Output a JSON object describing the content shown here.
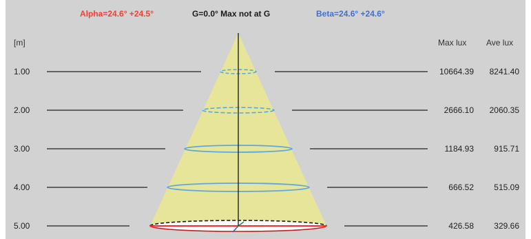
{
  "header": {
    "alpha": "Alpha=24.6° +24.5°",
    "g": "G=0.0°  Max not  at G",
    "beta": "Beta=24.6° +24.6°"
  },
  "columns": {
    "unit": "[m]",
    "max_lux": "Max lux",
    "ave_lux": "Ave lux"
  },
  "rows": [
    {
      "distance": "1.00",
      "max_lux": "10664.39",
      "ave_lux": "8241.40"
    },
    {
      "distance": "2.00",
      "max_lux": "2666.10",
      "ave_lux": "2060.35"
    },
    {
      "distance": "3.00",
      "max_lux": "1184.93",
      "ave_lux": "915.71"
    },
    {
      "distance": "4.00",
      "max_lux": "666.52",
      "ave_lux": "515.09"
    },
    {
      "distance": "5.00",
      "max_lux": "426.58",
      "ave_lux": "329.66"
    }
  ],
  "colors": {
    "alpha": "#ff3b30",
    "beta": "#3f6fd6",
    "cone_fill": "#e6e59a",
    "ellipse": "#5aa8e0",
    "background": "#d2d2d2"
  }
}
